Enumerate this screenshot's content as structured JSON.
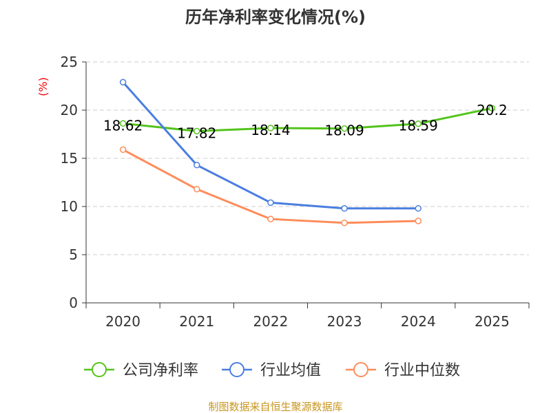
{
  "chart_data": {
    "type": "line",
    "title": "历年净利率变化情况(%)",
    "ylabel": "(%)",
    "xlabel": "",
    "ylim": [
      0,
      25
    ],
    "yticks": [
      0,
      5,
      10,
      15,
      20,
      25
    ],
    "grid": true,
    "categories": [
      "2020",
      "2021",
      "2022",
      "2023",
      "2024",
      "2025"
    ],
    "series": [
      {
        "name": "公司净利率",
        "color": "#52c41a",
        "values": [
          18.62,
          17.82,
          18.14,
          18.09,
          18.59,
          20.2
        ],
        "labels": [
          "18.62",
          "17.82",
          "18.14",
          "18.09",
          "18.59",
          "20.2"
        ]
      },
      {
        "name": "行业均值",
        "color": "#4a7ee0",
        "values": [
          22.9,
          14.3,
          10.4,
          9.8,
          9.8,
          null
        ]
      },
      {
        "name": "行业中位数",
        "color": "#ff8c5a",
        "values": [
          15.9,
          11.8,
          8.7,
          8.3,
          8.5,
          null
        ]
      }
    ],
    "legend_position": "bottom"
  },
  "footer": "制图数据来自恒生聚源数据库"
}
